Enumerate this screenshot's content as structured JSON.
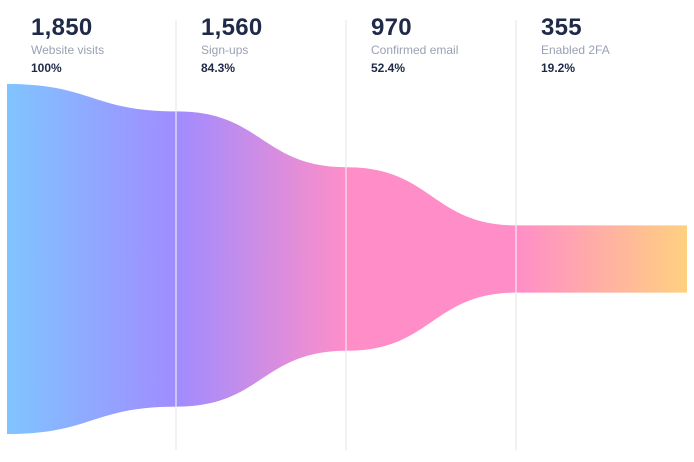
{
  "chart_data": {
    "type": "funnel",
    "categories": [
      "Website visits",
      "Sign-ups",
      "Confirmed email",
      "Enabled 2FA"
    ],
    "values": [
      1850,
      1560,
      970,
      355
    ],
    "value_labels": [
      "1,850",
      "1,560",
      "970",
      "355"
    ],
    "percent_labels": [
      "100%",
      "84.3%",
      "52.4%",
      "19.2%"
    ],
    "gradient_colors": [
      "#80c4ff",
      "#a08cff",
      "#ff8ec8",
      "#ff8ec8",
      "#ffd080"
    ],
    "divider_color": "#e3e5ea"
  }
}
